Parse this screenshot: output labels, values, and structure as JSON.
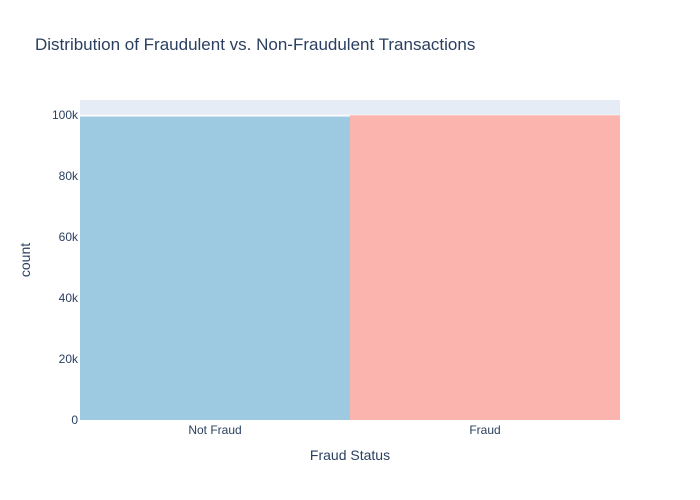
{
  "chart_data": {
    "type": "bar",
    "title": "Distribution of Fraudulent vs. Non-Fraudulent Transactions",
    "xlabel": "Fraud Status",
    "ylabel": "count",
    "categories": [
      "Not Fraud",
      "Fraud"
    ],
    "values": [
      99500,
      100000
    ],
    "ylim": [
      0,
      105000
    ],
    "y_ticks": [
      0,
      20000,
      40000,
      60000,
      80000,
      100000
    ],
    "y_tick_labels": [
      "0",
      "20k",
      "40k",
      "60k",
      "80k",
      "100k"
    ],
    "bar_colors": [
      "#9ecae1",
      "#fbb4ae"
    ],
    "plot_background": "#e5ecf6",
    "grid": true,
    "legend": "none"
  }
}
